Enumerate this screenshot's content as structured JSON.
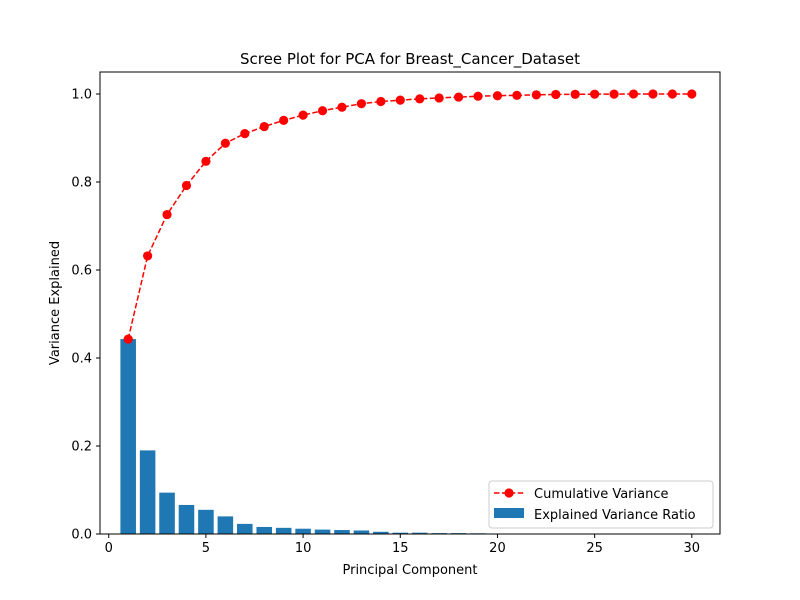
{
  "chart_data": {
    "type": "bar",
    "title": "Scree Plot for PCA for Breast_Cancer_Dataset",
    "xlabel": "Principal Component",
    "ylabel": "Variance Explained",
    "xlim": [
      -0.45,
      31.45
    ],
    "ylim": [
      0,
      1.05
    ],
    "grid": false,
    "legend_position": "lower right",
    "x": [
      1,
      2,
      3,
      4,
      5,
      6,
      7,
      8,
      9,
      10,
      11,
      12,
      13,
      14,
      15,
      16,
      17,
      18,
      19,
      20,
      21,
      22,
      23,
      24,
      25,
      26,
      27,
      28,
      29,
      30
    ],
    "x_ticks": [
      0,
      5,
      10,
      15,
      20,
      25,
      30
    ],
    "y_ticks": [
      0.0,
      0.2,
      0.4,
      0.6,
      0.8,
      1.0
    ],
    "x_tick_labels": [
      "0",
      "5",
      "10",
      "15",
      "20",
      "25",
      "30"
    ],
    "y_tick_labels": [
      "0.0",
      "0.2",
      "0.4",
      "0.6",
      "0.8",
      "1.0"
    ],
    "series": [
      {
        "name": "Cumulative Variance",
        "type": "line",
        "style": "dashed-with-markers",
        "color": "#ff0000",
        "values": [
          0.443,
          0.632,
          0.726,
          0.792,
          0.847,
          0.888,
          0.91,
          0.926,
          0.94,
          0.952,
          0.962,
          0.97,
          0.978,
          0.983,
          0.986,
          0.989,
          0.991,
          0.993,
          0.995,
          0.996,
          0.997,
          0.998,
          0.999,
          0.9993,
          0.9996,
          0.9998,
          0.9999,
          1.0,
          1.0,
          1.0
        ]
      },
      {
        "name": "Explained Variance Ratio",
        "type": "bar",
        "color": "#1f77b4",
        "values": [
          0.443,
          0.19,
          0.094,
          0.066,
          0.055,
          0.04,
          0.023,
          0.016,
          0.014,
          0.012,
          0.01,
          0.009,
          0.008,
          0.005,
          0.003,
          0.003,
          0.002,
          0.002,
          0.0016,
          0.0011,
          0.001,
          0.0009,
          0.0008,
          0.0005,
          0.0003,
          0.0003,
          0.0002,
          0.0001,
          0.0001,
          0.0001
        ]
      }
    ]
  }
}
